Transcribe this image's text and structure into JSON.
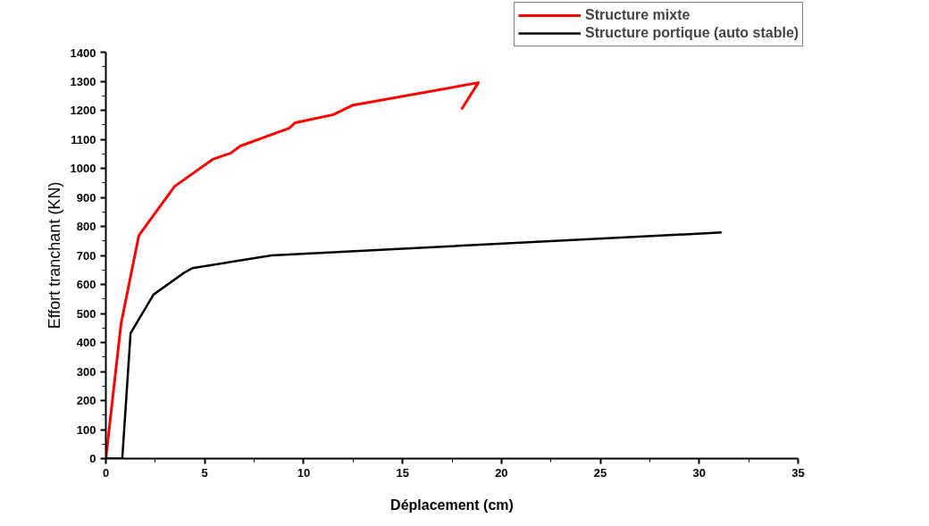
{
  "chart_data": {
    "type": "line",
    "xlabel": "Déplacement (cm)",
    "ylabel": "Effort tranchant (KN)",
    "xlim": [
      0,
      35
    ],
    "ylim": [
      0,
      1400
    ],
    "xticks": [
      0,
      5,
      10,
      15,
      20,
      25,
      30,
      35
    ],
    "yticks": [
      0,
      100,
      200,
      300,
      400,
      500,
      600,
      700,
      800,
      900,
      1000,
      1100,
      1200,
      1300,
      1400
    ],
    "grid": false,
    "legend": "top right",
    "marker": "none",
    "line_style": "solid",
    "series": [
      {
        "name": "Structure mixte",
        "color": "#ff0000",
        "x": [
          0,
          0.77,
          1.67,
          3.48,
          5.4,
          6.3,
          6.8,
          9.26,
          9.57,
          11.5,
          12.5,
          18.83,
          17.98
        ],
        "values": [
          0,
          465,
          769,
          938,
          1031,
          1052,
          1077,
          1138,
          1157,
          1185,
          1218,
          1295,
          1203
        ]
      },
      {
        "name": "Structure portique (auto stable)",
        "color": "#000000",
        "x": [
          0,
          0.83,
          1.25,
          2.41,
          3.95,
          4.37,
          8.37,
          31.13
        ],
        "values": [
          0,
          0,
          432,
          565,
          640,
          656,
          700,
          779
        ]
      }
    ]
  }
}
